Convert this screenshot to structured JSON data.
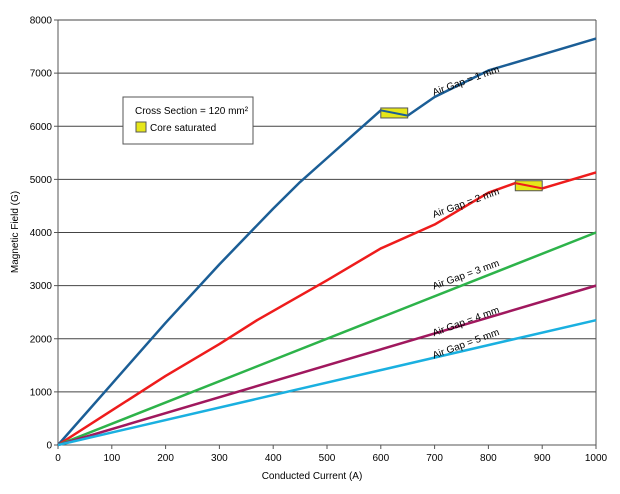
{
  "chart_data": {
    "type": "line",
    "title": "",
    "xlabel": "Conducted Current (A)",
    "ylabel": "Magnetic Field (G)",
    "xlim": [
      0,
      1000
    ],
    "ylim": [
      0,
      8000
    ],
    "xticks": [
      0,
      100,
      200,
      300,
      400,
      500,
      600,
      700,
      800,
      900,
      1000
    ],
    "yticks": [
      0,
      1000,
      2000,
      3000,
      4000,
      5000,
      6000,
      7000,
      8000
    ],
    "grid": "horizontal",
    "legend": {
      "placement": "top-left",
      "title": "Cross Section = 120 mm²",
      "entries": [
        {
          "label": "Core saturated",
          "color": "#e6e619"
        }
      ]
    },
    "series": [
      {
        "name": "Air Gap = 1 mm",
        "color": "#1b5e96",
        "x": [
          0,
          100,
          200,
          300,
          400,
          450,
          500,
          550,
          600,
          650,
          700,
          800,
          900,
          1000
        ],
        "y": [
          0,
          1150,
          2300,
          3400,
          4450,
          4950,
          5400,
          5850,
          6300,
          6200,
          6550,
          7050,
          7350,
          7650
        ],
        "saturated": [
          600,
          650
        ]
      },
      {
        "name": "Air Gap = 2 mm",
        "color": "#ee1c1c",
        "x": [
          0,
          100,
          200,
          300,
          370,
          500,
          600,
          700,
          800,
          850,
          900,
          1000
        ],
        "y": [
          0,
          650,
          1300,
          1900,
          2350,
          3100,
          3700,
          4150,
          4750,
          4930,
          4830,
          5130
        ],
        "saturated": [
          850,
          900
        ]
      },
      {
        "name": "Air Gap = 3 mm",
        "color": "#2db34a",
        "x": [
          0,
          1000
        ],
        "y": [
          0,
          4000
        ]
      },
      {
        "name": "Air Gap = 4 mm",
        "color": "#a0185e",
        "x": [
          0,
          1000
        ],
        "y": [
          0,
          3000
        ]
      },
      {
        "name": "Air Gap = 5 mm",
        "color": "#1ab0e0",
        "x": [
          0,
          1000
        ],
        "y": [
          0,
          2350
        ]
      }
    ],
    "annotations": [
      {
        "text": "Air Gap = 1 mm",
        "x": 760,
        "y": 6800
      },
      {
        "text": "Air Gap = 2 mm",
        "x": 760,
        "y": 4500
      },
      {
        "text": "Air Gap = 3 mm",
        "x": 760,
        "y": 3150
      },
      {
        "text": "Air Gap = 4 mm",
        "x": 760,
        "y": 2270
      },
      {
        "text": "Air Gap = 5 mm",
        "x": 760,
        "y": 1850
      }
    ]
  }
}
